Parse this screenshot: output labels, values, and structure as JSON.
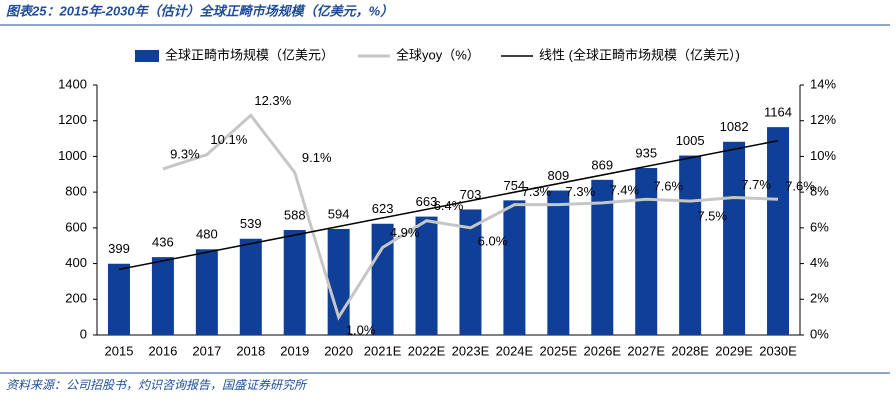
{
  "title": "图表25：2015年-2030年（估计）全球正畸市场规模（亿美元，%）",
  "source": "资料来源：公司招股书，灼识咨询报告，国盛证券研究所",
  "chart_data": {
    "type": "bar",
    "categories": [
      "2015",
      "2016",
      "2017",
      "2018",
      "2019",
      "2020",
      "2021E",
      "2022E",
      "2023E",
      "2024E",
      "2025E",
      "2026E",
      "2027E",
      "2028E",
      "2029E",
      "2030E"
    ],
    "series": [
      {
        "name": "全球正畸市场规模（亿美元）",
        "color": "#0f3f96",
        "type": "bar",
        "values": [
          399,
          436,
          480,
          539,
          588,
          594,
          623,
          663,
          703,
          754,
          809,
          869,
          935,
          1005,
          1082,
          1164
        ]
      },
      {
        "name": "全球yoy（%）",
        "color": "#c6c6c6",
        "type": "line",
        "axis": "y2",
        "values": [
          null,
          9.3,
          10.1,
          12.3,
          9.1,
          1.0,
          4.9,
          6.4,
          6.0,
          7.3,
          7.3,
          7.4,
          7.6,
          7.5,
          7.7,
          7.6
        ],
        "value_labels": [
          null,
          "9.3%",
          "10.1%",
          "12.3%",
          "9.1%",
          "1.0%",
          "4.9%",
          "6.4%",
          "6.0%",
          "7.3%",
          "7.3%",
          "7.4%",
          "7.6%",
          "7.5%",
          "7.7%",
          "7.6%"
        ]
      },
      {
        "name": "线性 (全球正畸市场规模（亿美元）)",
        "color": "#000000",
        "type": "trendline"
      }
    ],
    "ylim": [
      0,
      1400
    ],
    "yticks": [
      0,
      200,
      400,
      600,
      800,
      1000,
      1200,
      1400
    ],
    "y2lim": [
      0,
      14
    ],
    "y2ticks": [
      {
        "value": 0,
        "label": "0%"
      },
      {
        "value": 2,
        "label": "2%"
      },
      {
        "value": 4,
        "label": "4%"
      },
      {
        "value": 6,
        "label": "6%"
      },
      {
        "value": 8,
        "label": "8%"
      },
      {
        "value": 10,
        "label": "10%"
      },
      {
        "value": 12,
        "label": "12%"
      },
      {
        "value": 14,
        "label": "14%"
      }
    ],
    "legend": "top"
  }
}
